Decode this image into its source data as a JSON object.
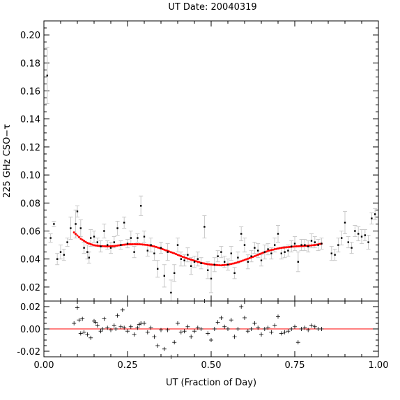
{
  "chart_data": {
    "type": "scatter",
    "title": "UT Date: 20040319",
    "xlabel": "UT (Fraction of Day)",
    "ylabel": "225 GHz CSO−τ",
    "xlim": [
      0.0,
      1.0
    ],
    "xticks": [
      "0.00",
      "0.25",
      "0.50",
      "0.75",
      "1.00"
    ],
    "top_panel": {
      "ylim": [
        0.01,
        0.21
      ],
      "yticks": [
        "0.02",
        "0.04",
        "0.06",
        "0.08",
        "0.10",
        "0.12",
        "0.14",
        "0.16",
        "0.18",
        "0.20"
      ],
      "series": [
        {
          "kind": "measurements_with_errorbars",
          "color": "#000000",
          "errorbar_color": "#c8c8c8",
          "points": [
            [
              0.01,
              0.171,
              0.02
            ],
            [
              0.02,
              0.055,
              0.003
            ],
            [
              0.03,
              0.065,
              0.002
            ],
            [
              0.04,
              0.04,
              0.004
            ],
            [
              0.05,
              0.045,
              0.005
            ],
            [
              0.06,
              0.043,
              0.004
            ],
            [
              0.07,
              0.052,
              0.003
            ],
            [
              0.08,
              0.062,
              0.008
            ],
            [
              0.095,
              0.065,
              0.01
            ],
            [
              0.1,
              0.074,
              0.004
            ],
            [
              0.11,
              0.062,
              0.006
            ],
            [
              0.12,
              0.048,
              0.004
            ],
            [
              0.13,
              0.045,
              0.005
            ],
            [
              0.135,
              0.041,
              0.004
            ],
            [
              0.14,
              0.055,
              0.006
            ],
            [
              0.15,
              0.056,
              0.004
            ],
            [
              0.16,
              0.052,
              0.003
            ],
            [
              0.17,
              0.049,
              0.004
            ],
            [
              0.18,
              0.06,
              0.005
            ],
            [
              0.19,
              0.05,
              0.003
            ],
            [
              0.2,
              0.048,
              0.004
            ],
            [
              0.21,
              0.052,
              0.004
            ],
            [
              0.22,
              0.062,
              0.005
            ],
            [
              0.23,
              0.05,
              0.003
            ],
            [
              0.24,
              0.066,
              0.004
            ],
            [
              0.25,
              0.051,
              0.003
            ],
            [
              0.26,
              0.055,
              0.005
            ],
            [
              0.27,
              0.045,
              0.004
            ],
            [
              0.28,
              0.055,
              0.003
            ],
            [
              0.29,
              0.078,
              0.007
            ],
            [
              0.3,
              0.056,
              0.004
            ],
            [
              0.31,
              0.046,
              0.004
            ],
            [
              0.32,
              0.05,
              0.005
            ],
            [
              0.33,
              0.044,
              0.005
            ],
            [
              0.34,
              0.033,
              0.006
            ],
            [
              0.35,
              0.048,
              0.004
            ],
            [
              0.36,
              0.028,
              0.008
            ],
            [
              0.37,
              0.045,
              0.006
            ],
            [
              0.38,
              0.016,
              0.009
            ],
            [
              0.39,
              0.03,
              0.006
            ],
            [
              0.4,
              0.05,
              0.005
            ],
            [
              0.41,
              0.04,
              0.005
            ],
            [
              0.42,
              0.039,
              0.004
            ],
            [
              0.43,
              0.043,
              0.005
            ],
            [
              0.44,
              0.035,
              0.006
            ],
            [
              0.45,
              0.038,
              0.004
            ],
            [
              0.46,
              0.04,
              0.005
            ],
            [
              0.47,
              0.037,
              0.004
            ],
            [
              0.48,
              0.063,
              0.008
            ],
            [
              0.49,
              0.032,
              0.006
            ],
            [
              0.5,
              0.026,
              0.01
            ],
            [
              0.51,
              0.036,
              0.005
            ],
            [
              0.52,
              0.042,
              0.004
            ],
            [
              0.53,
              0.045,
              0.004
            ],
            [
              0.54,
              0.038,
              0.004
            ],
            [
              0.55,
              0.036,
              0.004
            ],
            [
              0.56,
              0.044,
              0.005
            ],
            [
              0.57,
              0.03,
              0.004
            ],
            [
              0.58,
              0.041,
              0.004
            ],
            [
              0.59,
              0.058,
              0.005
            ],
            [
              0.6,
              0.05,
              0.005
            ],
            [
              0.61,
              0.038,
              0.005
            ],
            [
              0.62,
              0.042,
              0.004
            ],
            [
              0.63,
              0.048,
              0.004
            ],
            [
              0.64,
              0.046,
              0.005
            ],
            [
              0.65,
              0.039,
              0.004
            ],
            [
              0.66,
              0.045,
              0.005
            ],
            [
              0.67,
              0.047,
              0.004
            ],
            [
              0.68,
              0.044,
              0.004
            ],
            [
              0.69,
              0.05,
              0.005
            ],
            [
              0.7,
              0.058,
              0.006
            ],
            [
              0.71,
              0.044,
              0.004
            ],
            [
              0.72,
              0.045,
              0.004
            ],
            [
              0.73,
              0.046,
              0.004
            ],
            [
              0.74,
              0.049,
              0.004
            ],
            [
              0.75,
              0.051,
              0.005
            ],
            [
              0.76,
              0.038,
              0.007
            ],
            [
              0.77,
              0.05,
              0.004
            ],
            [
              0.78,
              0.05,
              0.004
            ],
            [
              0.79,
              0.049,
              0.004
            ],
            [
              0.8,
              0.053,
              0.005
            ],
            [
              0.81,
              0.052,
              0.004
            ],
            [
              0.82,
              0.05,
              0.004
            ],
            [
              0.83,
              0.051,
              0.004
            ],
            [
              0.86,
              0.044,
              0.005
            ],
            [
              0.87,
              0.043,
              0.004
            ],
            [
              0.88,
              0.05,
              0.005
            ],
            [
              0.89,
              0.055,
              0.005
            ],
            [
              0.9,
              0.066,
              0.008
            ],
            [
              0.91,
              0.052,
              0.004
            ],
            [
              0.92,
              0.048,
              0.004
            ],
            [
              0.93,
              0.06,
              0.004
            ],
            [
              0.94,
              0.058,
              0.005
            ],
            [
              0.95,
              0.056,
              0.005
            ],
            [
              0.96,
              0.057,
              0.004
            ],
            [
              0.97,
              0.052,
              0.005
            ],
            [
              0.98,
              0.069,
              0.004
            ],
            [
              0.99,
              0.072,
              0.004
            ]
          ]
        },
        {
          "kind": "fit_curve",
          "color": "#ff0000",
          "points": [
            [
              0.09,
              0.059
            ],
            [
              0.11,
              0.0545
            ],
            [
              0.13,
              0.0515
            ],
            [
              0.15,
              0.0498
            ],
            [
              0.17,
              0.0492
            ],
            [
              0.19,
              0.049
            ],
            [
              0.21,
              0.0492
            ],
            [
              0.23,
              0.05
            ],
            [
              0.25,
              0.0505
            ],
            [
              0.27,
              0.0506
            ],
            [
              0.29,
              0.0505
            ],
            [
              0.31,
              0.05
            ],
            [
              0.33,
              0.049
            ],
            [
              0.35,
              0.0475
            ],
            [
              0.37,
              0.0458
            ],
            [
              0.39,
              0.044
            ],
            [
              0.41,
              0.042
            ],
            [
              0.43,
              0.0403
            ],
            [
              0.45,
              0.0388
            ],
            [
              0.47,
              0.0373
            ],
            [
              0.49,
              0.0363
            ],
            [
              0.51,
              0.0358
            ],
            [
              0.53,
              0.0355
            ],
            [
              0.55,
              0.036
            ],
            [
              0.57,
              0.037
            ],
            [
              0.59,
              0.0385
            ],
            [
              0.61,
              0.0402
            ],
            [
              0.63,
              0.042
            ],
            [
              0.65,
              0.044
            ],
            [
              0.67,
              0.0458
            ],
            [
              0.69,
              0.047
            ],
            [
              0.71,
              0.048
            ],
            [
              0.73,
              0.0485
            ],
            [
              0.75,
              0.049
            ],
            [
              0.77,
              0.0492
            ],
            [
              0.79,
              0.0495
            ],
            [
              0.81,
              0.05
            ],
            [
              0.83,
              0.051
            ]
          ]
        }
      ]
    },
    "bottom_panel": {
      "ylim": [
        -0.025,
        0.025
      ],
      "yticks": [
        "-0.02",
        "0.00",
        "0.02"
      ],
      "zero_line_color": "#ff0000",
      "residuals": [
        [
          0.09,
          0.005
        ],
        [
          0.1,
          0.019
        ],
        [
          0.105,
          0.008
        ],
        [
          0.11,
          -0.004
        ],
        [
          0.115,
          0.009
        ],
        [
          0.12,
          -0.003
        ],
        [
          0.13,
          -0.005
        ],
        [
          0.14,
          -0.008
        ],
        [
          0.15,
          0.007
        ],
        [
          0.155,
          0.006
        ],
        [
          0.16,
          0.003
        ],
        [
          0.17,
          -0.002
        ],
        [
          0.175,
          0.0
        ],
        [
          0.18,
          0.009
        ],
        [
          0.19,
          0.001
        ],
        [
          0.2,
          -0.001
        ],
        [
          0.21,
          0.003
        ],
        [
          0.215,
          0.0
        ],
        [
          0.22,
          0.012
        ],
        [
          0.23,
          0.002
        ],
        [
          0.235,
          0.017
        ],
        [
          0.24,
          0.001
        ],
        [
          0.25,
          -0.002
        ],
        [
          0.26,
          0.002
        ],
        [
          0.27,
          -0.005
        ],
        [
          0.28,
          0.001
        ],
        [
          0.285,
          0.004
        ],
        [
          0.29,
          0.005
        ],
        [
          0.3,
          0.005
        ],
        [
          0.31,
          -0.003
        ],
        [
          0.32,
          0.001
        ],
        [
          0.33,
          -0.007
        ],
        [
          0.34,
          -0.015
        ],
        [
          0.35,
          -0.001
        ],
        [
          0.36,
          -0.018
        ],
        [
          0.37,
          -0.001
        ],
        [
          0.38,
          -0.029
        ],
        [
          0.39,
          -0.012
        ],
        [
          0.4,
          0.005
        ],
        [
          0.41,
          -0.003
        ],
        [
          0.42,
          -0.002
        ],
        [
          0.43,
          0.002
        ],
        [
          0.44,
          -0.007
        ],
        [
          0.45,
          -0.002
        ],
        [
          0.46,
          0.001
        ],
        [
          0.47,
          0.0
        ],
        [
          0.48,
          0.025
        ],
        [
          0.49,
          -0.004
        ],
        [
          0.5,
          -0.01
        ],
        [
          0.51,
          0.0
        ],
        [
          0.52,
          0.006
        ],
        [
          0.53,
          0.01
        ],
        [
          0.54,
          0.002
        ],
        [
          0.55,
          0.0
        ],
        [
          0.56,
          0.008
        ],
        [
          0.57,
          -0.007
        ],
        [
          0.58,
          0.0
        ],
        [
          0.59,
          0.02
        ],
        [
          0.6,
          0.01
        ],
        [
          0.61,
          -0.002
        ],
        [
          0.62,
          0.0
        ],
        [
          0.63,
          0.005
        ],
        [
          0.64,
          0.001
        ],
        [
          0.65,
          -0.005
        ],
        [
          0.66,
          0.0
        ],
        [
          0.67,
          0.001
        ],
        [
          0.68,
          -0.003
        ],
        [
          0.69,
          0.003
        ],
        [
          0.7,
          0.011
        ],
        [
          0.71,
          -0.004
        ],
        [
          0.72,
          -0.003
        ],
        [
          0.73,
          -0.002
        ],
        [
          0.74,
          0.0
        ],
        [
          0.75,
          0.002
        ],
        [
          0.76,
          -0.012
        ],
        [
          0.77,
          0.0
        ],
        [
          0.78,
          0.001
        ],
        [
          0.79,
          -0.001
        ],
        [
          0.8,
          0.003
        ],
        [
          0.81,
          0.002
        ],
        [
          0.82,
          0.0
        ],
        [
          0.83,
          0.0
        ]
      ]
    }
  }
}
